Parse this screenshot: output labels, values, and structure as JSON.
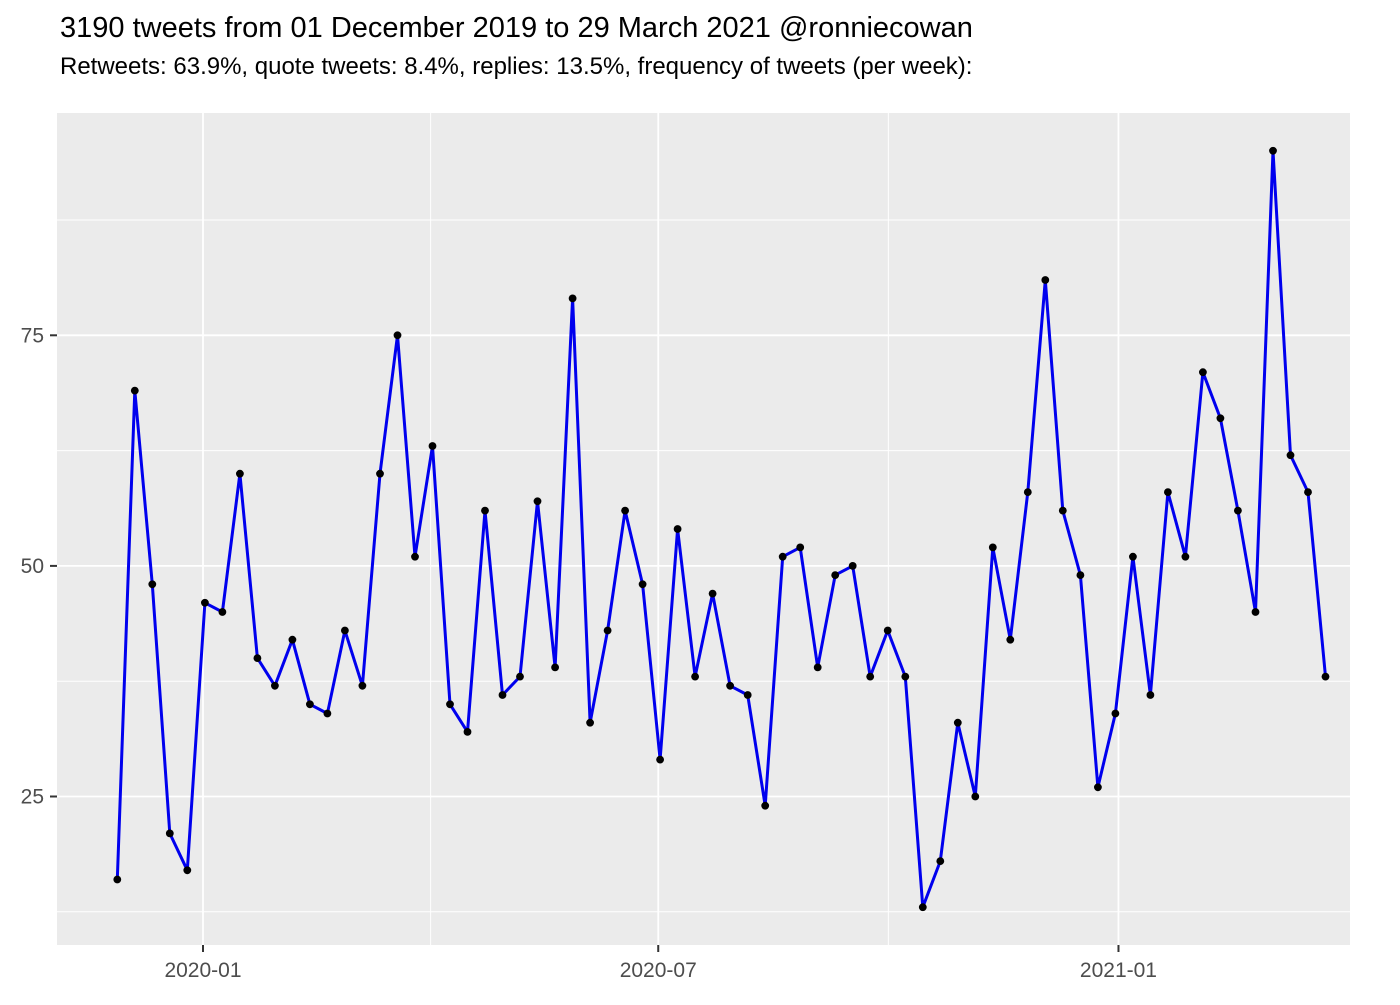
{
  "header": {
    "title": "3190 tweets from 01 December 2019 to 29 March 2021 @ronniecowan",
    "subtitle": "Retweets: 63.9%, quote tweets: 8.4%, replies: 13.5%, frequency of tweets (per week):"
  },
  "chart_data": {
    "type": "line",
    "title": "3190 tweets from 01 December 2019 to 29 March 2021 @ronniecowan",
    "subtitle": "Retweets: 63.9%, quote tweets: 8.4%, replies: 13.5%, frequency of tweets (per week):",
    "series_name": "tweets-per-week",
    "xlabel": "",
    "ylabel": "",
    "x_start_date": "2019-12-01",
    "x_end_date": "2021-03-28",
    "x_step_days": 7,
    "values": [
      16,
      69,
      48,
      21,
      17,
      46,
      45,
      60,
      40,
      37,
      42,
      35,
      34,
      43,
      37,
      60,
      75,
      51,
      63,
      35,
      32,
      56,
      36,
      38,
      57,
      39,
      79,
      33,
      43,
      56,
      48,
      29,
      54,
      38,
      47,
      37,
      36,
      24,
      51,
      52,
      39,
      49,
      50,
      38,
      43,
      38,
      13,
      18,
      33,
      25,
      52,
      42,
      58,
      81,
      56,
      49,
      26,
      34,
      51,
      36,
      58,
      51,
      71,
      66,
      56,
      45,
      95,
      62,
      58,
      38
    ],
    "total_tweets": 3190,
    "ylim": [
      8.9,
      99.1
    ],
    "y_ticks": [
      25,
      50,
      75
    ],
    "y_minor_ticks": [
      12.5,
      37.5,
      62.5,
      87.5
    ],
    "x_ticks": [
      {
        "label": "2020-01",
        "date": "2020-01-01"
      },
      {
        "label": "2020-07",
        "date": "2020-07-01"
      },
      {
        "label": "2021-01",
        "date": "2021-01-01"
      }
    ],
    "x_minor_tick_dates": [
      "2020-04-01",
      "2020-10-01"
    ],
    "grid": "on",
    "legend_position": "none",
    "colors": {
      "line": "#0000EE",
      "point": "#000000",
      "panel_background": "#EBEBEB",
      "gridline": "#FFFFFF",
      "tick_mark": "#333333",
      "tick_label": "#4D4D4D",
      "title_text": "#000000",
      "page_background": "#FFFFFF"
    }
  }
}
